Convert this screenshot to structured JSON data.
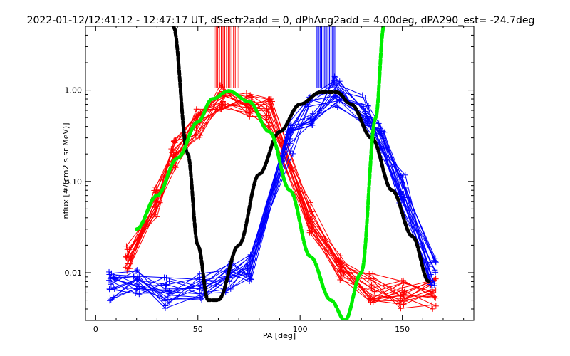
{
  "chart_data": {
    "type": "line",
    "title": "2022-01-12/12:41:12 - 12:47:17 UT, dSectr2add = 0, dPhAng2add = 4.00deg, dPA290_est= -24.7deg",
    "xlabel": "PA [deg]",
    "ylabel": "nflux [#/(cm2 s sr MeV)]",
    "xlim": [
      -5,
      185
    ],
    "ylim": [
      0.003,
      5.0
    ],
    "y_scale": "log",
    "grid": false,
    "x_ticks": [
      0,
      50,
      100,
      150
    ],
    "x_tick_labels": [
      "0",
      "50",
      "100",
      "150"
    ],
    "y_ticks": [
      0.01,
      0.1,
      1.0
    ],
    "y_tick_labels": [
      "0.01",
      "0.10",
      "1.00"
    ],
    "colors": {
      "red": "#ff0000",
      "blue": "#0000ff",
      "black": "#000000",
      "green": "#00ee00"
    },
    "series": [
      {
        "color": "red",
        "style": "line-plus",
        "x": [
          16,
          30,
          38,
          50,
          62,
          75,
          85,
          105,
          120,
          135,
          150,
          165
        ],
        "y": [
          0.015,
          0.06,
          0.2,
          0.45,
          0.9,
          0.75,
          0.55,
          0.04,
          0.012,
          0.007,
          0.006,
          0.006
        ]
      },
      {
        "color": "blue",
        "style": "line-plus",
        "x": [
          8,
          20,
          35,
          52,
          65,
          75,
          95,
          105,
          118,
          132,
          140,
          150,
          165
        ],
        "y": [
          0.007,
          0.008,
          0.006,
          0.007,
          0.009,
          0.012,
          0.3,
          0.6,
          0.95,
          0.6,
          0.3,
          0.08,
          0.01
        ]
      },
      {
        "color": "black",
        "style": "thick-dashed",
        "x": [
          38,
          45,
          50,
          55,
          60,
          70,
          80,
          90,
          100,
          110,
          118,
          125,
          135,
          145,
          155,
          163
        ],
        "y": [
          5.0,
          0.2,
          0.02,
          0.005,
          0.005,
          0.02,
          0.12,
          0.35,
          0.7,
          0.95,
          0.95,
          0.7,
          0.3,
          0.08,
          0.025,
          0.008
        ]
      },
      {
        "color": "green",
        "style": "thick-dashed",
        "x": [
          20,
          30,
          40,
          50,
          57,
          65,
          75,
          85,
          95,
          105,
          115,
          122,
          130,
          137,
          141
        ],
        "y": [
          0.03,
          0.07,
          0.18,
          0.45,
          0.8,
          0.98,
          0.75,
          0.35,
          0.08,
          0.015,
          0.005,
          0.003,
          0.01,
          0.5,
          5.0
        ]
      }
    ],
    "markers": [
      {
        "color": "red",
        "x": [
          58,
          70
        ]
      },
      {
        "color": "blue",
        "x": [
          108,
          117
        ]
      }
    ]
  }
}
